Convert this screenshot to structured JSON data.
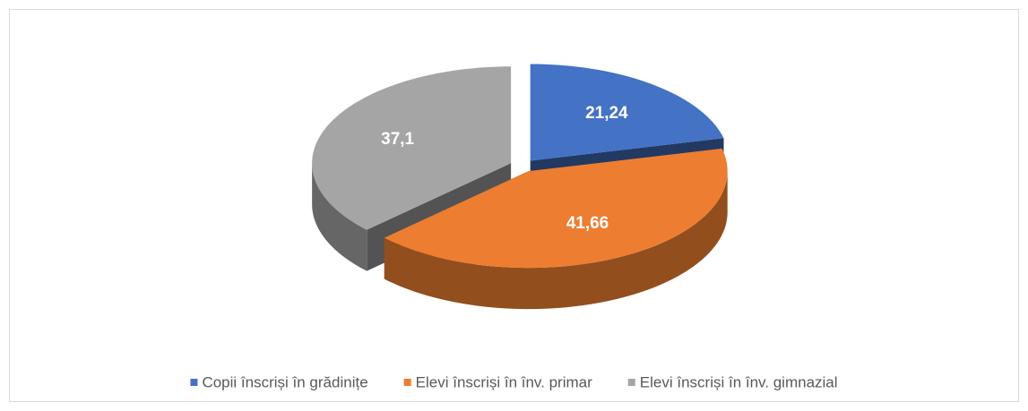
{
  "chart_data": {
    "type": "pie3d",
    "categories": [
      "Copii înscriși în grădinițe",
      "Elevi înscriși în înv. primar",
      "Elevi înscriși în înv. gimnazial"
    ],
    "values": [
      21.24,
      41.66,
      37.1
    ],
    "value_labels": [
      "21,24",
      "41,66",
      "37,1"
    ],
    "colors": [
      "#4472c4",
      "#ed7d31",
      "#a5a5a5"
    ],
    "legend": "bottom"
  }
}
